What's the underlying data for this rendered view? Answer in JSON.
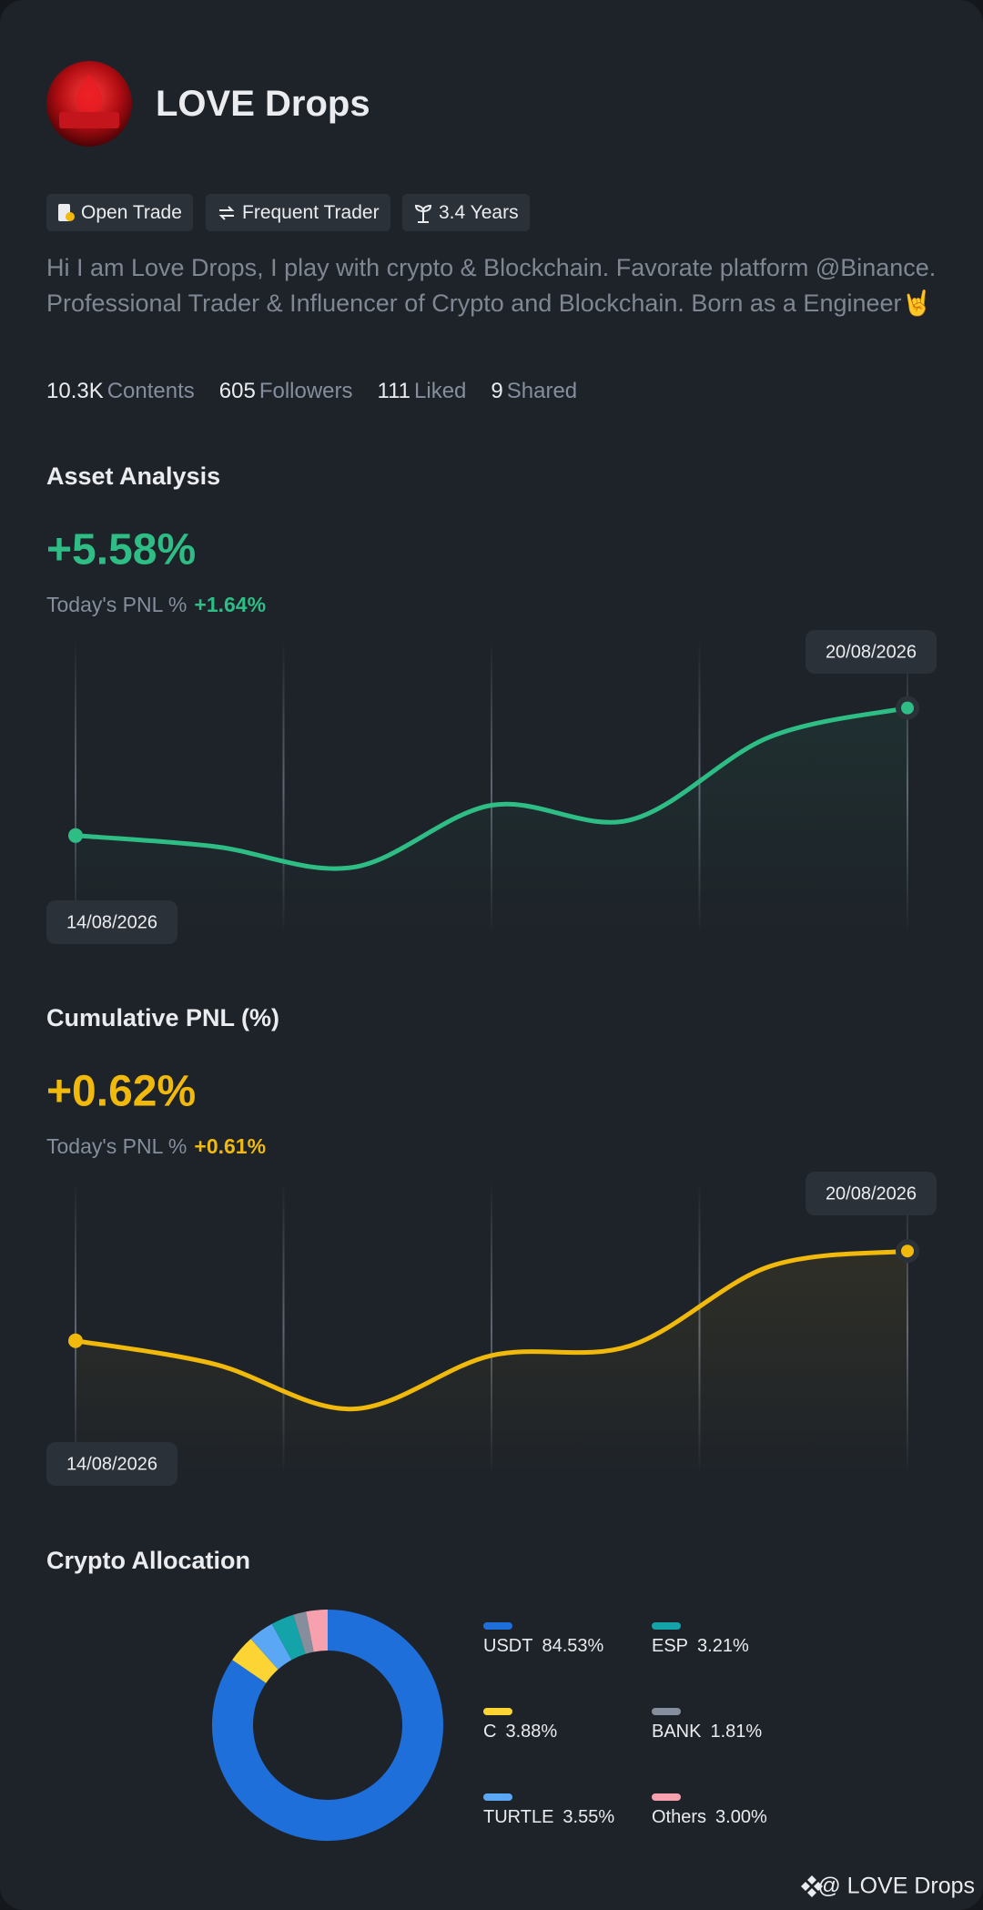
{
  "profile": {
    "name": "LOVE Drops",
    "badges": [
      "Open Trade",
      "Frequent Trader",
      "3.4 Years"
    ],
    "bio": "Hi I am Love Drops, I play with crypto & Blockchain. Favorate platform @Binance. Professional Trader & Influencer of Crypto and Blockchain. Born as a Engineer🤘",
    "stats": [
      {
        "value": "10.3K",
        "label": "Contents"
      },
      {
        "value": "605",
        "label": "Followers"
      },
      {
        "value": "111",
        "label": "Liked"
      },
      {
        "value": "9",
        "label": "Shared"
      }
    ]
  },
  "chart_data": [
    {
      "type": "line",
      "title": "Asset Analysis",
      "headline": "+5.58%",
      "pnl_label": "Today's PNL %",
      "pnl_value": "+1.64%",
      "categories": [
        "14/08/2026",
        null,
        null,
        null,
        null,
        null,
        "20/08/2026"
      ],
      "series": [
        {
          "color": "#2ebd85",
          "values": [
            33.5,
            29.8,
            22.7,
            43.8,
            38.8,
            66.9,
            76.9
          ]
        }
      ],
      "ylim": [
        0,
        100
      ]
    },
    {
      "type": "line",
      "title": "Cumulative PNL (%)",
      "headline": "+0.62%",
      "pnl_label": "Today's PNL %",
      "pnl_value": "+0.61%",
      "categories": [
        "14/08/2026",
        null,
        null,
        null,
        null,
        null,
        "20/08/2026"
      ],
      "series": [
        {
          "color": "#f0b90b",
          "values": [
            45.9,
            38.0,
            22.7,
            40.9,
            44.2,
            71.1,
            76.4
          ]
        }
      ],
      "ylim": [
        0,
        100
      ]
    },
    {
      "type": "donut",
      "title": "Crypto Allocation",
      "categories": [
        "USDT",
        "C",
        "TURTLE",
        "ESP",
        "BANK",
        "Others"
      ],
      "values": [
        84.53,
        3.88,
        3.55,
        3.21,
        1.81,
        3.0
      ],
      "value_labels": [
        "84.53%",
        "3.88%",
        "3.55%",
        "3.21%",
        "1.81%",
        "3.00%"
      ],
      "colors": [
        "#1e6fd9",
        "#fcd535",
        "#5aa7f5",
        "#14a3a8",
        "#848e9c",
        "#f7a1ae"
      ]
    }
  ],
  "footer": "@ LOVE Drops"
}
